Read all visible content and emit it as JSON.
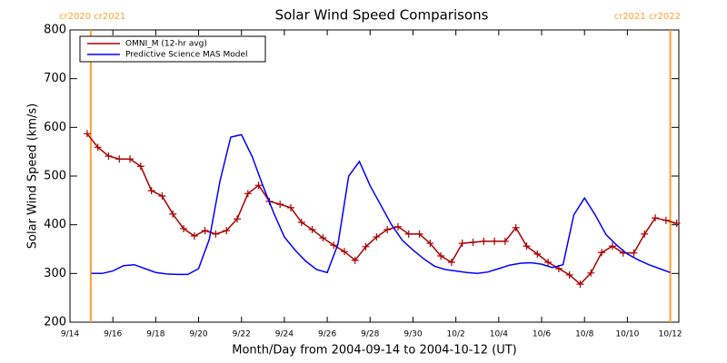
{
  "chart_data": {
    "type": "line",
    "title": "Solar Wind Speed Comparisons",
    "xlabel": "Month/Day from 2004-09-14 to 2004-10-12 (UT)",
    "ylabel": "Solar Wind Speed (km/s)",
    "xlim": [
      0,
      28.4
    ],
    "ylim": [
      200,
      800
    ],
    "xticks": [
      {
        "value": 0,
        "label": "9/14"
      },
      {
        "value": 2,
        "label": "9/16"
      },
      {
        "value": 4,
        "label": "9/18"
      },
      {
        "value": 6,
        "label": "9/20"
      },
      {
        "value": 8,
        "label": "9/22"
      },
      {
        "value": 10,
        "label": "9/24"
      },
      {
        "value": 12,
        "label": "9/26"
      },
      {
        "value": 14,
        "label": "9/28"
      },
      {
        "value": 16,
        "label": "9/30"
      },
      {
        "value": 18,
        "label": "10/2"
      },
      {
        "value": 20,
        "label": "10/4"
      },
      {
        "value": 22,
        "label": "10/6"
      },
      {
        "value": 24,
        "label": "10/8"
      },
      {
        "value": 26,
        "label": "10/10"
      },
      {
        "value": 28,
        "label": "10/12"
      }
    ],
    "yticks": [
      200,
      300,
      400,
      500,
      600,
      700,
      800
    ],
    "legend": "upper left",
    "markers": [
      {
        "x": 0.97,
        "label": "cr2020 cr2021",
        "color": "#ffa030"
      },
      {
        "x": 28.0,
        "label": "cr2021 cr2022",
        "color": "#ffa030"
      }
    ],
    "series": [
      {
        "name": "OMNI_M (12-hr avg)",
        "color": "#aa0000",
        "marker": "+",
        "x": [
          0.8,
          1.3,
          1.8,
          2.3,
          2.8,
          3.3,
          3.8,
          4.3,
          4.8,
          5.3,
          5.8,
          6.3,
          6.8,
          7.3,
          7.8,
          8.3,
          8.8,
          9.3,
          9.8,
          10.3,
          10.8,
          11.3,
          11.8,
          12.3,
          12.8,
          13.3,
          13.8,
          14.3,
          14.8,
          15.3,
          15.8,
          16.3,
          16.8,
          17.3,
          17.8,
          18.3,
          18.8,
          19.3,
          19.8,
          20.3,
          20.8,
          21.3,
          21.8,
          22.3,
          22.8,
          23.3,
          23.8,
          24.3,
          24.8,
          25.3,
          25.8,
          26.3,
          26.8,
          27.3,
          27.8,
          28.3
        ],
        "values": [
          587,
          559,
          541,
          535,
          535,
          520,
          470,
          459,
          422,
          392,
          377,
          388,
          381,
          388,
          412,
          464,
          481,
          448,
          442,
          435,
          405,
          390,
          373,
          358,
          345,
          327,
          355,
          375,
          390,
          396,
          381,
          381,
          362,
          336,
          323,
          362,
          364,
          366,
          366,
          366,
          394,
          356,
          340,
          323,
          310,
          297,
          278,
          301,
          343,
          356,
          342,
          342,
          381,
          414,
          409,
          403
        ]
      },
      {
        "name": "Predictive Science MAS Model",
        "color": "#0000ff",
        "x": [
          1.0,
          1.5,
          2.0,
          2.5,
          3.0,
          3.5,
          4.0,
          4.5,
          5.0,
          5.5,
          6.0,
          6.5,
          7.0,
          7.5,
          8.0,
          8.5,
          9.0,
          9.5,
          10.0,
          10.5,
          11.0,
          11.5,
          12.0,
          12.5,
          13.0,
          13.5,
          14.0,
          14.5,
          15.0,
          15.5,
          16.0,
          16.5,
          17.0,
          17.5,
          18.0,
          18.5,
          19.0,
          19.5,
          20.0,
          20.5,
          21.0,
          21.5,
          22.0,
          22.5,
          23.0,
          23.5,
          24.0,
          24.5,
          25.0,
          25.5,
          26.0,
          26.5,
          27.0,
          27.5,
          28.0
        ],
        "values": [
          300,
          300,
          305,
          316,
          318,
          310,
          302,
          299,
          298,
          298,
          310,
          370,
          490,
          580,
          585,
          540,
          480,
          425,
          375,
          348,
          325,
          308,
          302,
          360,
          500,
          530,
          480,
          440,
          400,
          368,
          348,
          330,
          315,
          308,
          305,
          302,
          300,
          303,
          310,
          317,
          321,
          322,
          319,
          312,
          318,
          420,
          455,
          420,
          380,
          358,
          340,
          328,
          318,
          310,
          302
        ]
      }
    ]
  }
}
